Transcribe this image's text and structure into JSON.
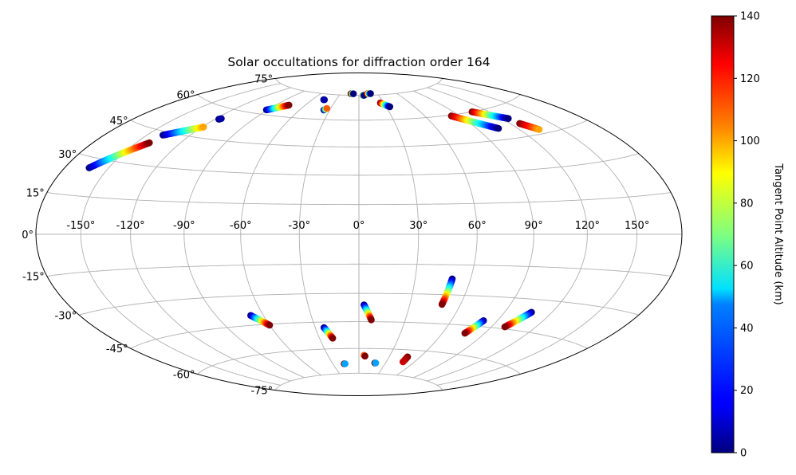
{
  "chart_data": {
    "type": "scatter",
    "projection": "hammer",
    "title": "Solar occultations for diffraction order 164",
    "grid": true,
    "x_ticks": [
      -150,
      -120,
      -90,
      -60,
      -30,
      0,
      30,
      60,
      90,
      120,
      150
    ],
    "x_tick_labels": [
      "-150°",
      "-120°",
      "-90°",
      "-60°",
      "-30°",
      "0°",
      "30°",
      "60°",
      "90°",
      "120°",
      "150°"
    ],
    "y_ticks": [
      75,
      60,
      45,
      30,
      15,
      0,
      -15,
      -30,
      -45,
      -60,
      -75
    ],
    "y_tick_labels": [
      "75°",
      "60°",
      "45°",
      "30°",
      "15°",
      "0°",
      "-15°",
      "-30°",
      "-45°",
      "-60°",
      "-75°"
    ],
    "xlim": [
      -180,
      180
    ],
    "ylim": [
      -90,
      90
    ],
    "colorbar": {
      "label": "Tangent Point Altitude (km)",
      "range": [
        0,
        140
      ],
      "ticks": [
        0,
        20,
        40,
        60,
        80,
        100,
        120,
        140
      ],
      "tick_labels": [
        "0",
        "20",
        "40",
        "60",
        "80",
        "100",
        "120",
        "140"
      ],
      "colormap": "jet"
    },
    "tracks": [
      {
        "lon_start": -163,
        "lat_start": 26,
        "alt_start": 0,
        "lon_end": -141,
        "lat_end": 39.5,
        "alt_end": 140
      },
      {
        "lon_start": -139,
        "lat_start": 43.5,
        "alt_start": 0,
        "lon_end": -119,
        "lat_end": 50,
        "alt_end": 100
      },
      {
        "lon_start": -117,
        "lat_start": 54.5,
        "alt_start": 0,
        "lon_end": -116,
        "lat_end": 55,
        "alt_end": 5
      },
      {
        "lon_start": -91,
        "lat_start": 62.5,
        "alt_start": 0,
        "lon_end": -77,
        "lat_end": 66.5,
        "alt_end": 140
      },
      {
        "lon_start": -46,
        "lat_start": 71.5,
        "alt_start": 0,
        "lon_end": -45,
        "lat_end": 71.5,
        "alt_end": 5
      },
      {
        "lon_start": -36,
        "lat_start": 65.5,
        "alt_start": 0,
        "lon_end": -34,
        "lat_end": 66.5,
        "alt_end": 110
      },
      {
        "lon_start": -13,
        "lat_start": 76,
        "alt_start": 140,
        "lon_end": -9,
        "lat_end": 76,
        "alt_end": 0
      },
      {
        "lon_start": 6,
        "lat_start": 75,
        "alt_start": 100,
        "lon_end": 8,
        "lat_end": 75,
        "alt_end": 0
      },
      {
        "lon_start": 14,
        "lat_start": 76,
        "alt_start": 120,
        "lon_end": 19,
        "lat_end": 76,
        "alt_end": 0
      },
      {
        "lon_start": 26,
        "lat_start": 70,
        "alt_start": 140,
        "lon_end": 34,
        "lat_end": 67.5,
        "alt_end": 0
      },
      {
        "lon_start": 83,
        "lat_start": 59.5,
        "alt_start": 140,
        "lon_end": 106,
        "lat_end": 50.5,
        "alt_end": 0
      },
      {
        "lon_start": 106,
        "lat_start": 60,
        "alt_start": 140,
        "lon_end": 125,
        "lat_end": 54,
        "alt_end": 0
      },
      {
        "lon_start": 127,
        "lat_start": 51,
        "alt_start": 140,
        "lon_end": 134,
        "lat_end": 47,
        "alt_end": 100
      },
      {
        "lon_start": 50,
        "lat_start": -22,
        "alt_start": 0,
        "lon_end": 49,
        "lat_end": -35,
        "alt_end": 140
      },
      {
        "lon_start": 81,
        "lat_start": -42,
        "alt_start": 0,
        "lon_end": 76,
        "lat_end": -49,
        "alt_end": 140
      },
      {
        "lon_start": 107,
        "lat_start": -36,
        "alt_start": 0,
        "lon_end": 99,
        "lat_end": -44,
        "alt_end": 140
      },
      {
        "lon_start": 3,
        "lat_start": -36,
        "alt_start": 0,
        "lon_end": 8,
        "lat_end": -44,
        "alt_end": 140
      },
      {
        "lon_start": -24,
        "lat_start": -48,
        "alt_start": 0,
        "lon_end": -20,
        "lat_end": -54,
        "alt_end": 140
      },
      {
        "lon_start": -68,
        "lat_start": -40,
        "alt_start": 0,
        "lon_end": -60,
        "lat_end": -45.5,
        "alt_end": 140
      },
      {
        "lon_start": 5,
        "lat_start": -64,
        "alt_start": 110,
        "lon_end": 6,
        "lat_end": -64.5,
        "alt_end": 140
      },
      {
        "lon_start": -17,
        "lat_start": -69,
        "alt_start": 140,
        "lon_end": -16,
        "lat_end": -69,
        "alt_end": 40
      },
      {
        "lon_start": 18,
        "lat_start": -68.5,
        "alt_start": 140,
        "lon_end": 19,
        "lat_end": -68.5,
        "alt_end": 40
      },
      {
        "lon_start": 48,
        "lat_start": -64,
        "alt_start": 140,
        "lon_end": 48,
        "lat_end": -67,
        "alt_end": 130
      }
    ]
  }
}
